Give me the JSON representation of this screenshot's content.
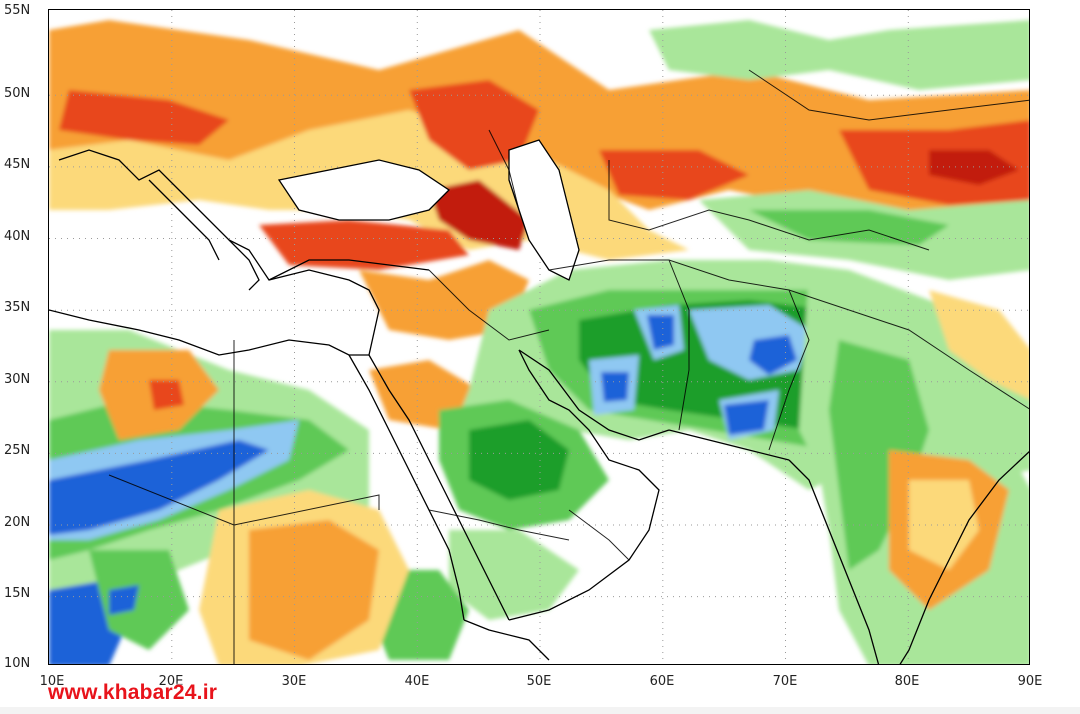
{
  "map": {
    "lat_labels": [
      "55N",
      "50N",
      "45N",
      "40N",
      "35N",
      "30N",
      "25N",
      "20N",
      "15N",
      "10N"
    ],
    "lon_labels": [
      "10E",
      "20E",
      "30E",
      "40E",
      "50E",
      "60E",
      "70E",
      "80E",
      "90E"
    ],
    "extent": {
      "lon_min": 10,
      "lon_max": 90,
      "lat_min": 10,
      "lat_max": 55
    },
    "palette": {
      "dark_red": "#c21a08",
      "red_orange": "#e8471a",
      "orange": "#f7a035",
      "light_orange": "#fcd97a",
      "light_green": "#a9e69a",
      "green": "#5fc956",
      "dark_green": "#1e9e2c",
      "light_blue": "#8fc8f2",
      "blue": "#1d62d8"
    }
  },
  "watermark": "www.khabar24.ir"
}
